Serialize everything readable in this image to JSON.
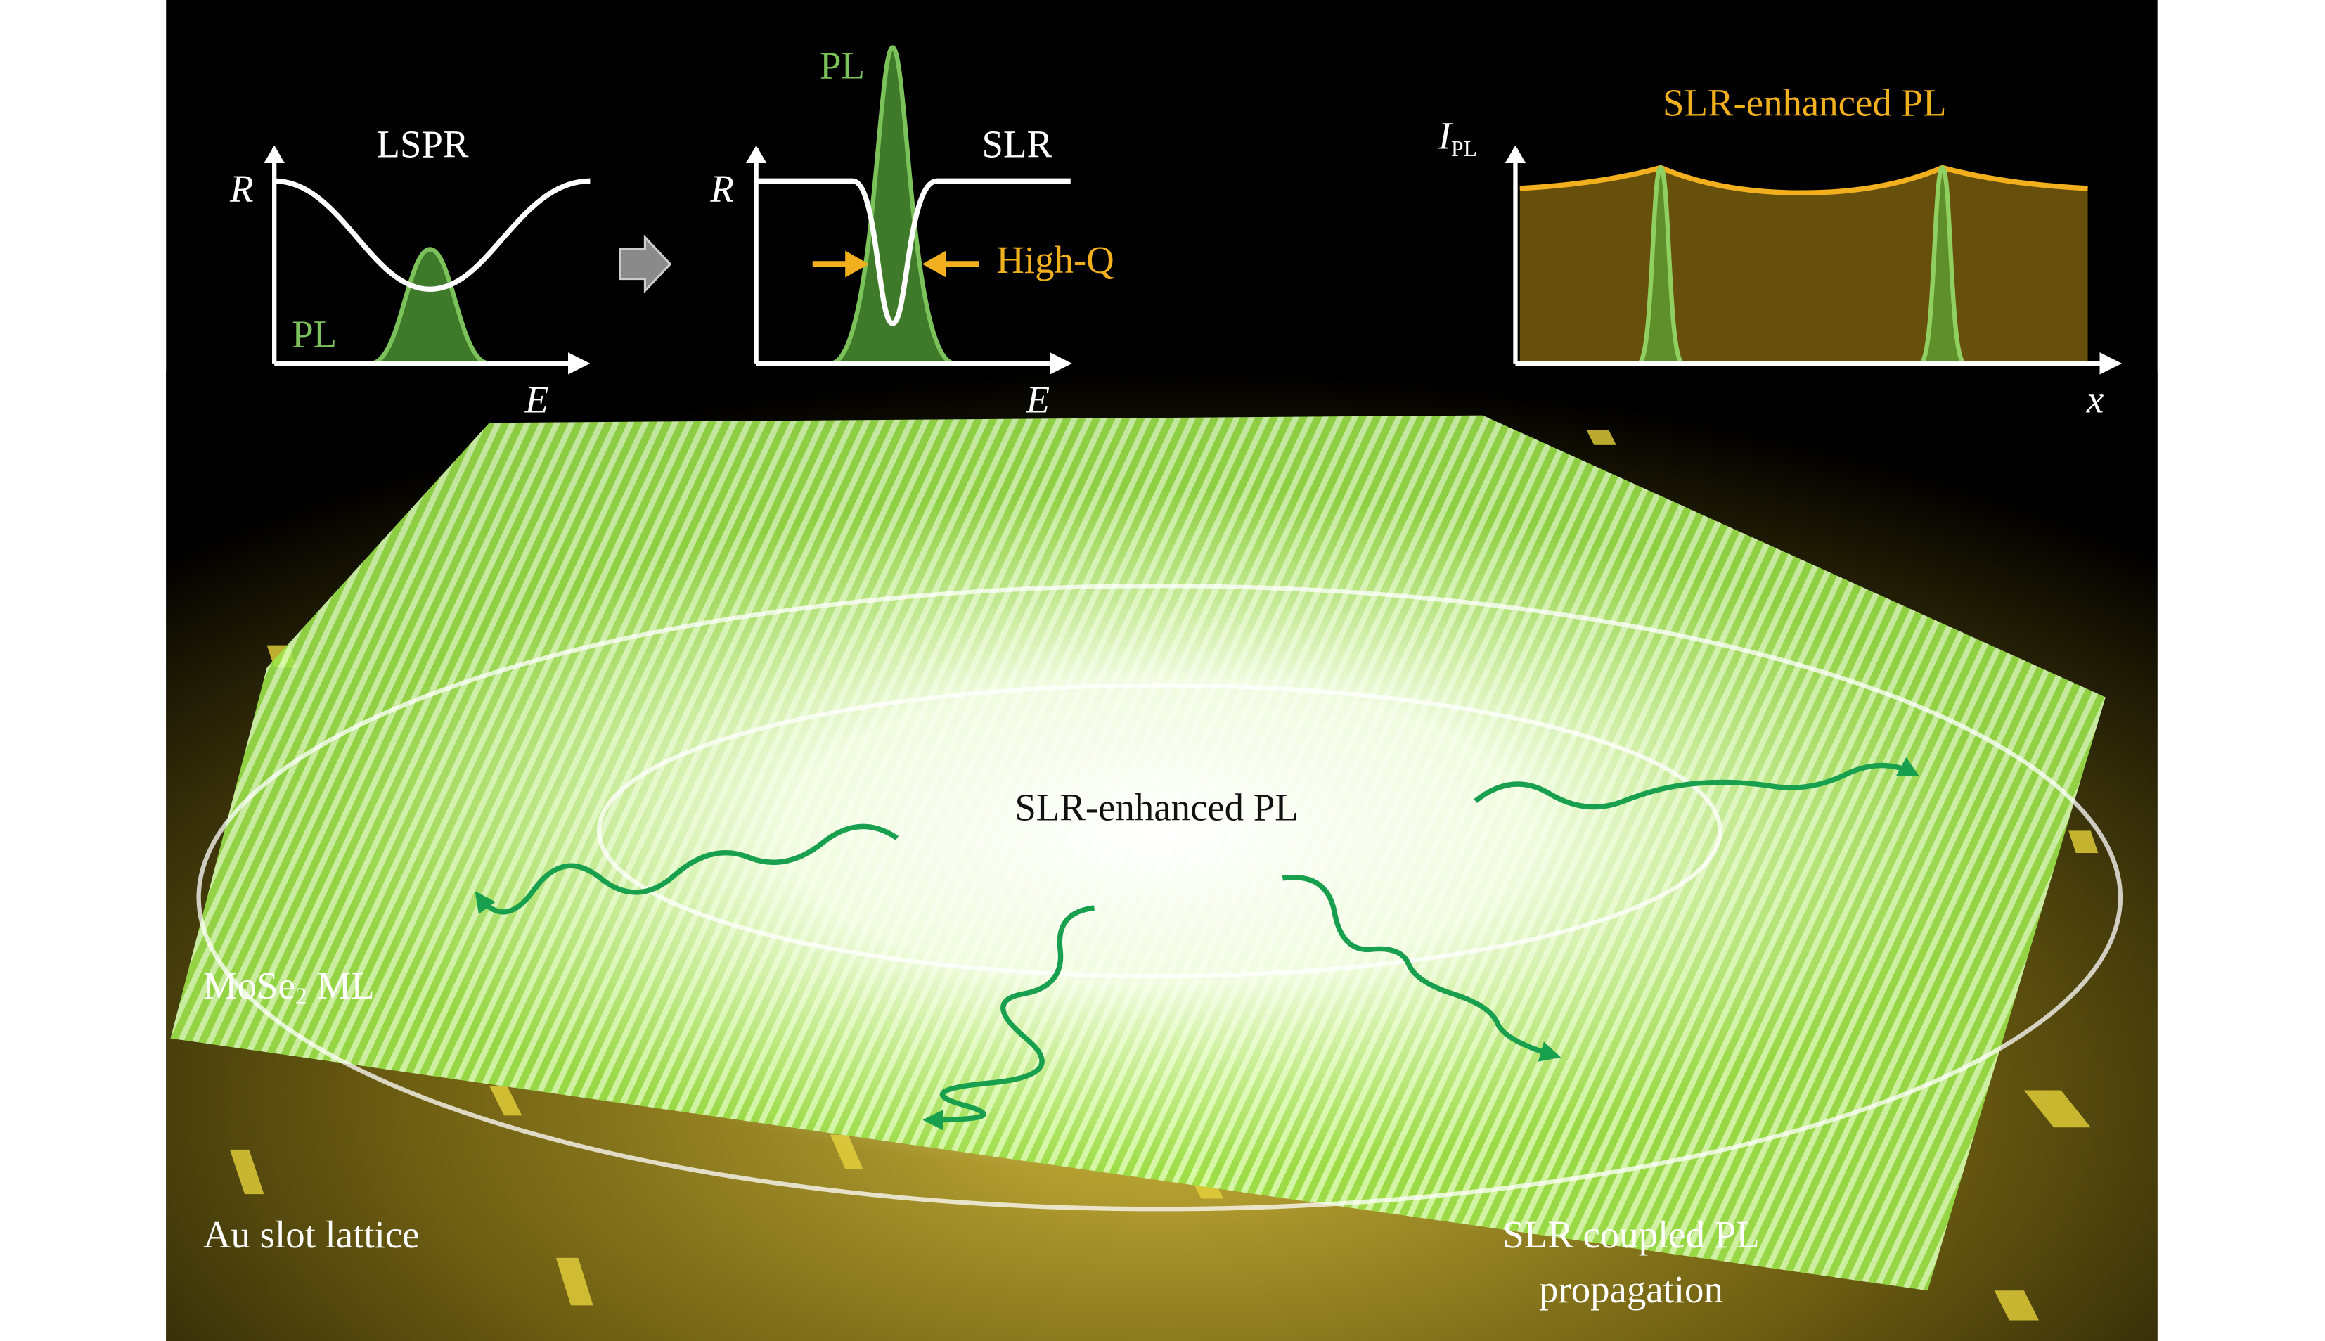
{
  "panels": [
    {
      "title": "LSPR",
      "y_axis": "R",
      "x_axis": "E",
      "peak_label": "PL"
    },
    {
      "title": "SLR",
      "y_axis": "R",
      "x_axis": "E",
      "peak_label": "PL",
      "annotation": "High-Q"
    },
    {
      "title": "SLR-enhanced PL",
      "y_axis": {
        "symbol": "I",
        "subscript": "PL"
      },
      "x_axis": "x"
    }
  ],
  "scene": {
    "center_label": "SLR-enhanced PL",
    "monolayer_label": {
      "main": "MoSe",
      "subscript": "2",
      "rest": " ML"
    },
    "substrate_label": "Au slot lattice",
    "propagation_label": [
      "SLR coupled PL",
      "propagation"
    ]
  }
}
